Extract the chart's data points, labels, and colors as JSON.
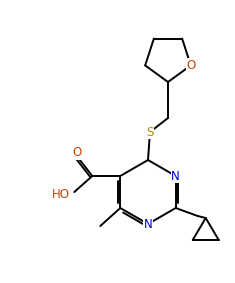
{
  "bg_color": "#ffffff",
  "line_color": "#000000",
  "atom_colors": {
    "N": "#0000cd",
    "O": "#cc4400",
    "S": "#b8860b",
    "C": "#000000"
  },
  "font_size_atom": 8.5,
  "line_width": 1.4
}
